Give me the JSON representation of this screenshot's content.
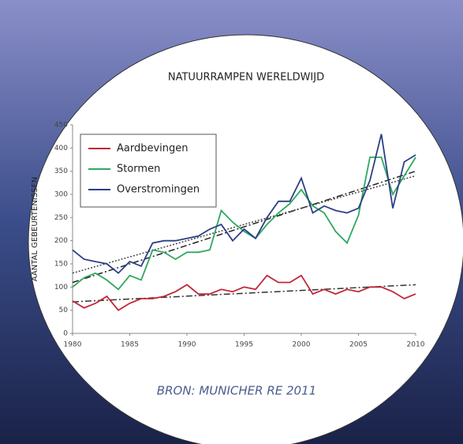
{
  "chart_data": {
    "type": "line",
    "title": "NATUURRAMPEN WERELDWIJD",
    "y_label": "AANTAL GEBEURTENISSEN",
    "source": "BRON:   MUNICHER RE 2011",
    "x": [
      1980,
      1981,
      1982,
      1983,
      1984,
      1985,
      1986,
      1987,
      1988,
      1989,
      1990,
      1991,
      1992,
      1993,
      1994,
      1995,
      1996,
      1997,
      1998,
      1999,
      2000,
      2001,
      2002,
      2003,
      2004,
      2005,
      2006,
      2007,
      2008,
      2009,
      2010
    ],
    "series": [
      {
        "name": "Aardbevingen",
        "color": "#c0283a",
        "values": [
          70,
          55,
          65,
          80,
          50,
          65,
          75,
          75,
          80,
          90,
          105,
          85,
          85,
          95,
          90,
          100,
          95,
          125,
          110,
          110,
          125,
          85,
          95,
          85,
          95,
          90,
          100,
          100,
          90,
          75,
          85
        ]
      },
      {
        "name": "Stormen",
        "color": "#2fa860",
        "values": [
          100,
          120,
          130,
          115,
          95,
          125,
          115,
          180,
          175,
          160,
          175,
          175,
          180,
          265,
          240,
          220,
          205,
          235,
          260,
          280,
          310,
          275,
          260,
          220,
          195,
          255,
          380,
          380,
          300,
          340,
          380
        ]
      },
      {
        "name": "Overstromingen",
        "color": "#2c3f86",
        "values": [
          180,
          160,
          155,
          150,
          130,
          155,
          145,
          195,
          200,
          200,
          205,
          210,
          225,
          235,
          200,
          225,
          205,
          250,
          285,
          285,
          335,
          260,
          275,
          265,
          260,
          270,
          330,
          430,
          270,
          370,
          385
        ]
      }
    ],
    "trendlines": [
      {
        "color": "#222222",
        "x": [
          1980,
          2010
        ],
        "values": [
          110,
          350
        ]
      },
      {
        "color": "#444444",
        "x": [
          1980,
          2010
        ],
        "values": [
          130,
          340
        ]
      },
      {
        "color": "#333333",
        "x": [
          1980,
          2010
        ],
        "values": [
          68,
          105
        ]
      }
    ],
    "xlim": [
      1980,
      2010
    ],
    "xticks": [
      1980,
      1985,
      1990,
      1995,
      2000,
      2005,
      2010
    ],
    "ylim": [
      0,
      450
    ],
    "yticks": [
      0,
      50,
      100,
      150,
      200,
      250,
      300,
      350,
      400,
      450
    ],
    "legend": "upper left"
  }
}
